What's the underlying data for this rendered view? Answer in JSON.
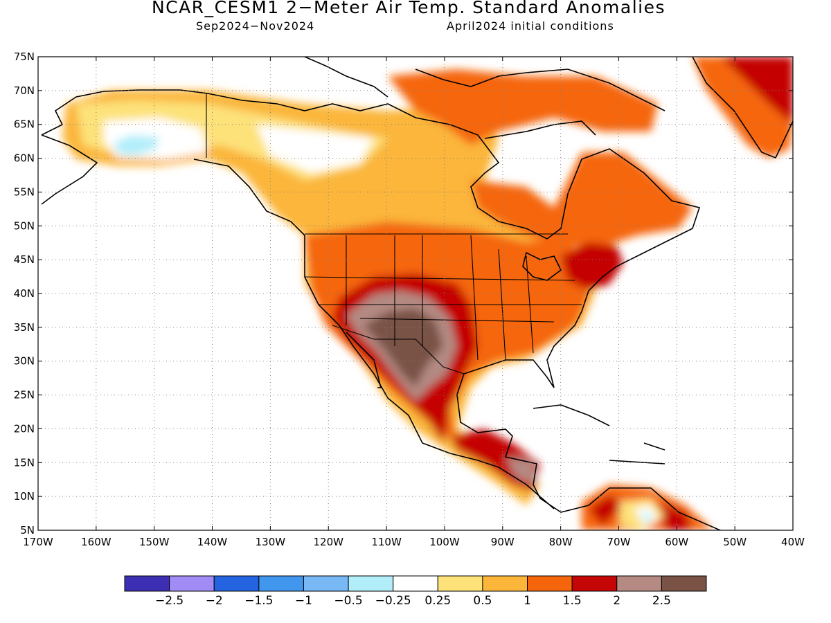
{
  "title": "NCAR_CESM1 2−Meter Air Temp. Standard Anomalies",
  "subtitle_left": "Sep2024−Nov2024",
  "subtitle_right": "April2024 initial conditions",
  "map": {
    "projection": "lat-lon",
    "lon_range": [
      -170,
      -40
    ],
    "lat_range": [
      5,
      75
    ],
    "grid": "dotted",
    "lon_ticks": [
      "170W",
      "160W",
      "150W",
      "140W",
      "130W",
      "120W",
      "110W",
      "100W",
      "90W",
      "80W",
      "70W",
      "60W",
      "50W",
      "40W"
    ],
    "lat_ticks": [
      "75N",
      "70N",
      "65N",
      "60N",
      "55N",
      "50N",
      "45N",
      "40N",
      "35N",
      "30N",
      "25N",
      "20N",
      "15N",
      "10N",
      "5N"
    ]
  },
  "colorbar": {
    "colors": [
      "#3c2fb4",
      "#a08cf4",
      "#2464e0",
      "#4196ee",
      "#78b8f5",
      "#b2eefa",
      "#ffffff",
      "#fde27a",
      "#fbb63a",
      "#f5660c",
      "#c40606",
      "#b48a82",
      "#7a5246"
    ],
    "labels": [
      "−2.5",
      "−2",
      "−1.5",
      "−1",
      "−0.5",
      "−0.25",
      "0.25",
      "0.5",
      "1",
      "1.5",
      "2",
      "2.5"
    ]
  },
  "anomaly_regions": [
    {
      "name": "four-corners-southwest",
      "level": 2.5,
      "lon": -108,
      "lat": 33
    },
    {
      "name": "northeast-us",
      "level": 2.0,
      "lon": -73,
      "lat": 43
    },
    {
      "name": "greenland",
      "level": 2.0,
      "lon": -45,
      "lat": 70
    },
    {
      "name": "alaska-interior",
      "level": -0.5,
      "lon": -150,
      "lat": 62
    },
    {
      "name": "northern-south-america",
      "level": 2.0,
      "lon": -70,
      "lat": 7
    }
  ]
}
